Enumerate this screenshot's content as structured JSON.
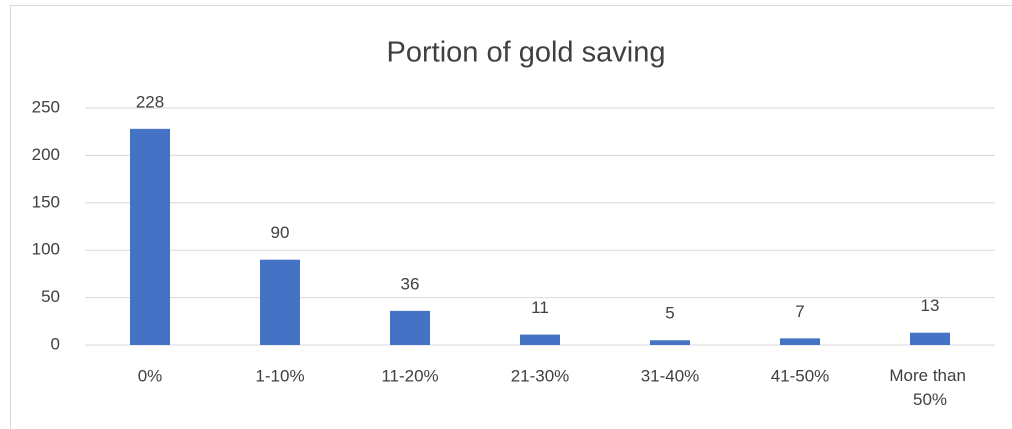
{
  "chart_data": {
    "type": "bar",
    "title": "Portion of gold saving",
    "categories": [
      "0%",
      "1-10%",
      "11-20%",
      "21-30%",
      "31-40%",
      "41-50%",
      "More than 50%"
    ],
    "values": [
      228,
      90,
      36,
      11,
      5,
      7,
      13
    ],
    "color": "#4472c4",
    "ylim": [
      0,
      250
    ],
    "yticks": [
      0,
      50,
      100,
      150,
      200,
      250
    ],
    "grid": true
  }
}
